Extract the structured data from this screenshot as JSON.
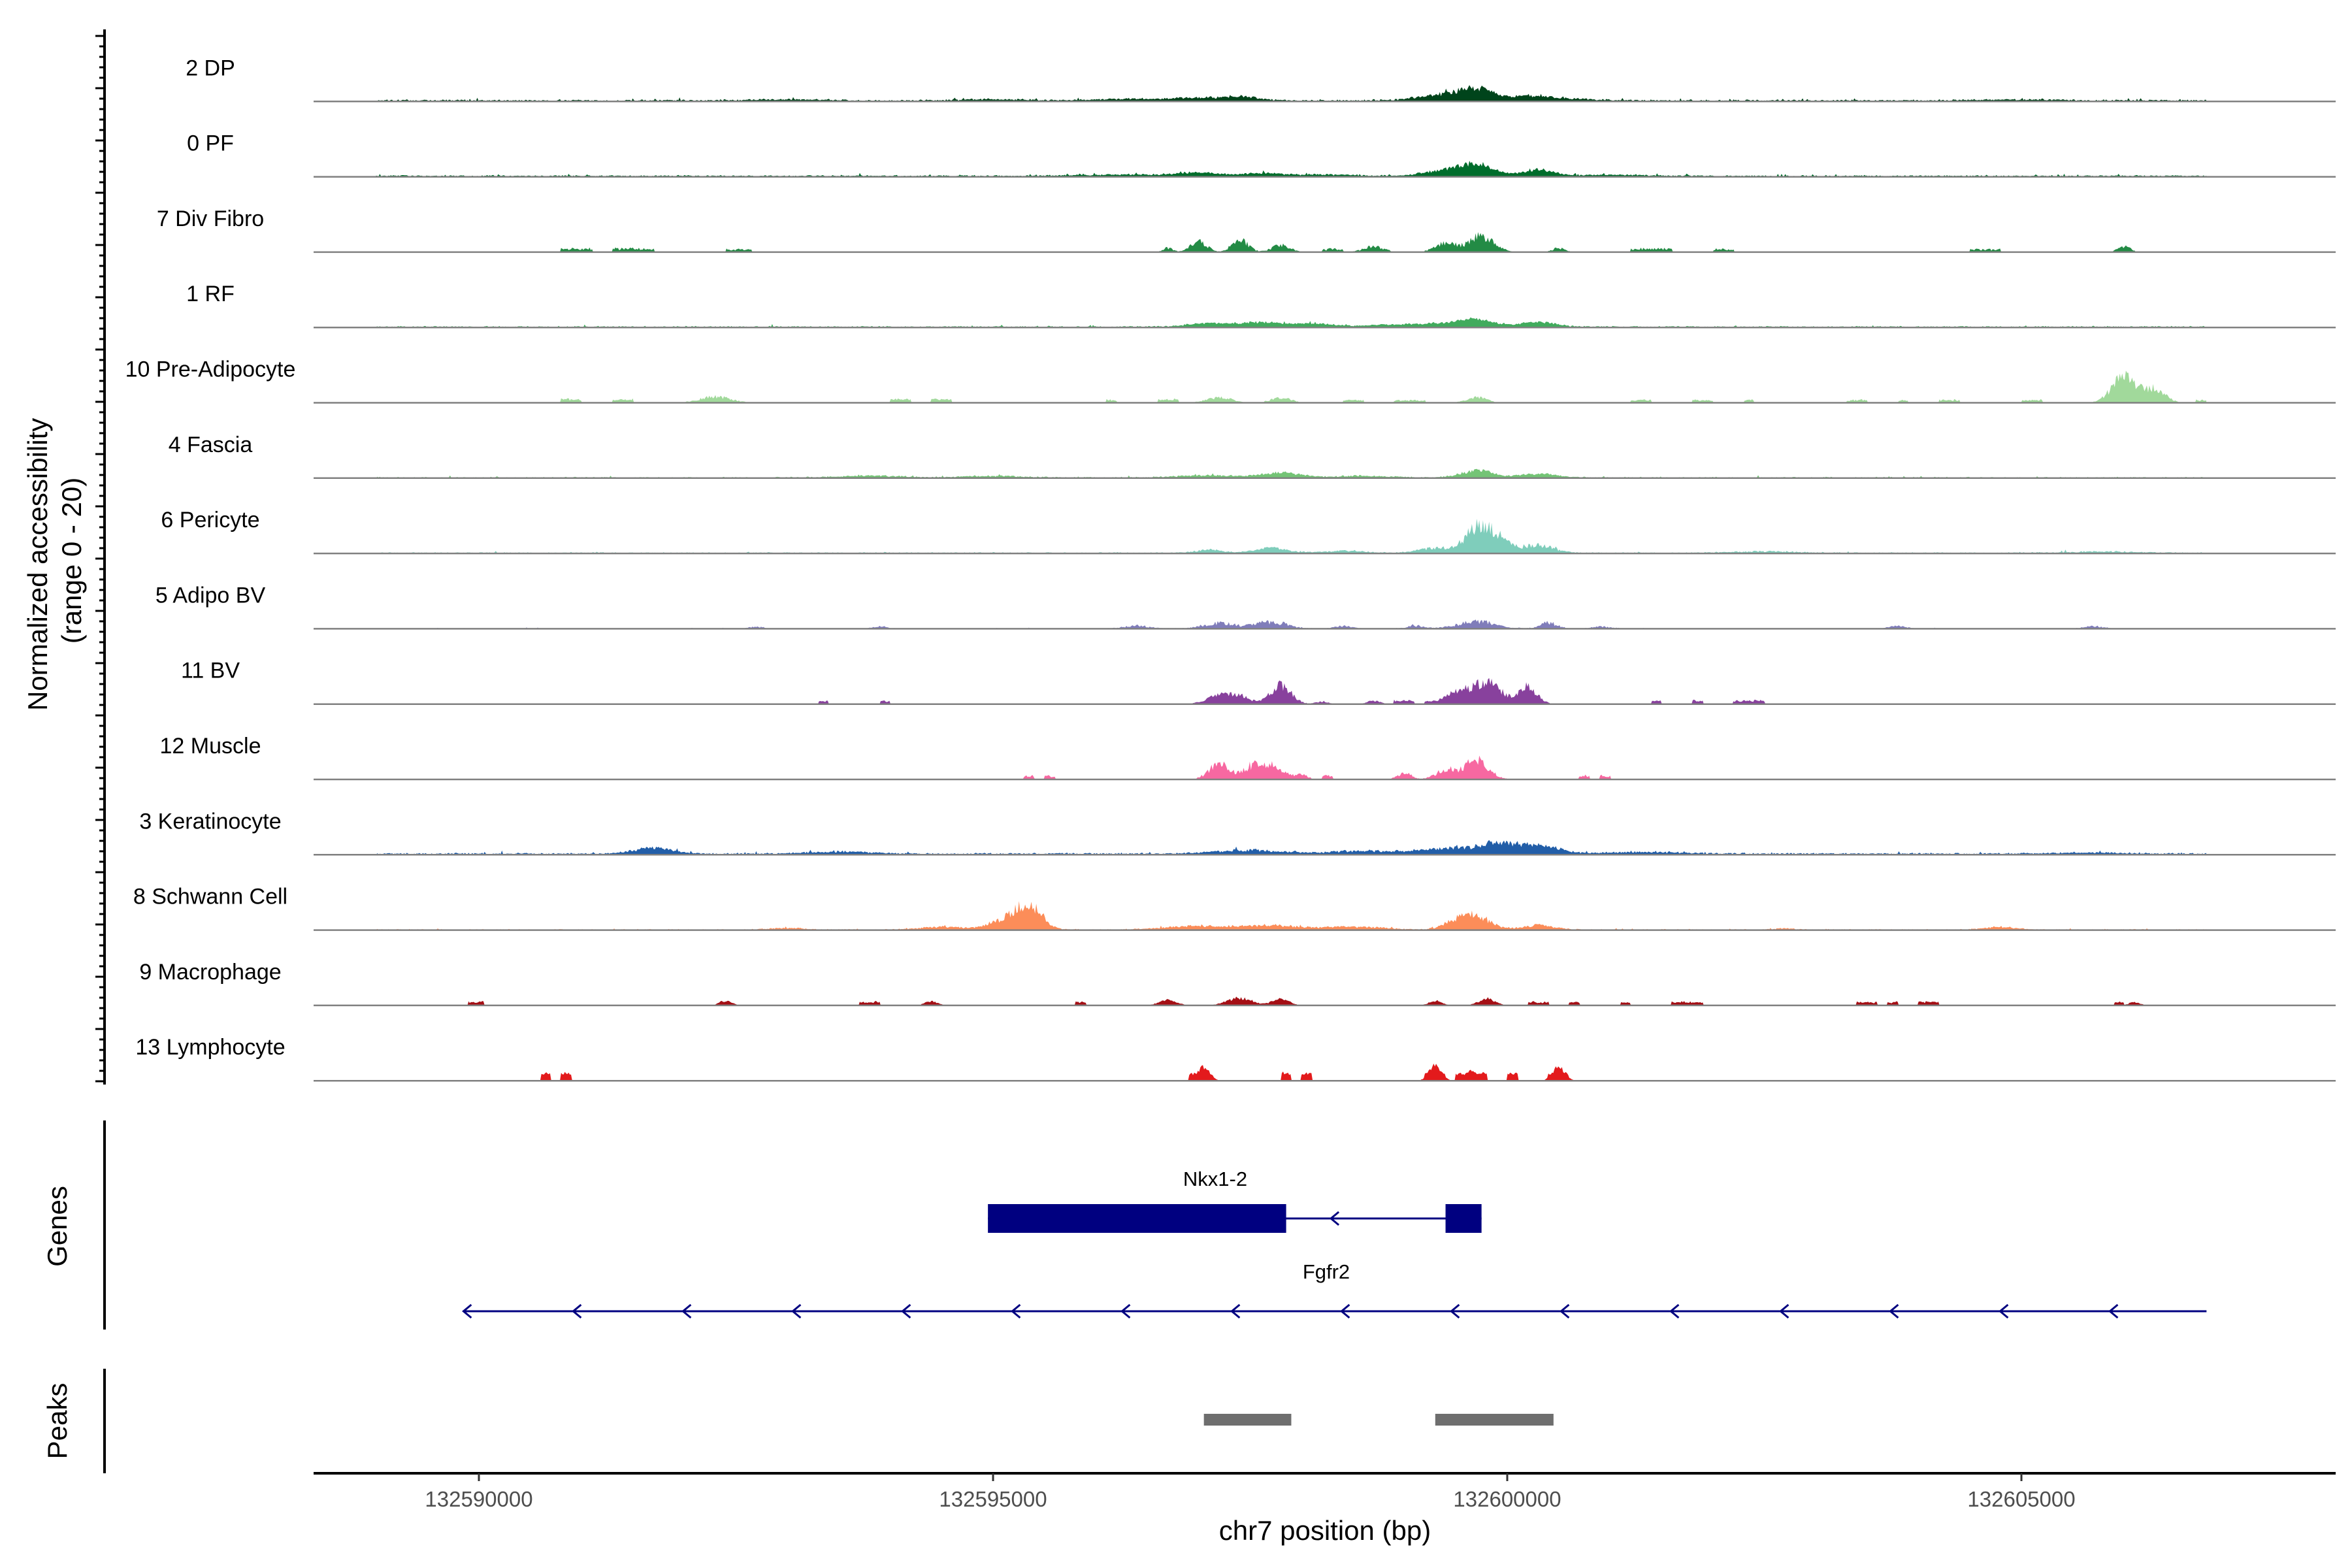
{
  "chart_data": {
    "type": "area",
    "title": "",
    "chromosome": "chr7",
    "xlabel": "chr7 position (bp)",
    "ylabel": "Normalized accessibility\n(range 0 - 20)",
    "ylim": [
      0,
      20
    ],
    "xlim": [
      132588750,
      132607250
    ],
    "x_ticks": [
      132590000,
      132595000,
      132600000,
      132605000
    ],
    "x_tick_labels": [
      "132590000",
      "132595000",
      "132600000",
      "132605000"
    ],
    "data_range": [
      132589000,
      132606800
    ],
    "panel_labels": {
      "genes": "Genes",
      "peaks": "Peaks"
    },
    "series": [
      {
        "name": "2 DP",
        "color": "#00441B",
        "style": "smooth",
        "base": 0.4,
        "noise": 0.5,
        "peaks": [
          [
            132597400,
            180,
            1.0
          ],
          [
            132597000,
            250,
            0.6
          ],
          [
            132599700,
            160,
            2.8
          ],
          [
            132599400,
            250,
            1.6
          ],
          [
            132600200,
            200,
            1.2
          ],
          [
            132600600,
            250,
            0.5
          ],
          [
            132596300,
            400,
            0.4
          ],
          [
            132593000,
            300,
            0.3
          ],
          [
            132595000,
            300,
            0.3
          ],
          [
            132604900,
            400,
            0.25
          ]
        ]
      },
      {
        "name": "0 PF",
        "color": "#006D2C",
        "style": "smooth",
        "base": 0.35,
        "noise": 0.5,
        "peaks": [
          [
            132597000,
            180,
            1.0
          ],
          [
            132597600,
            180,
            0.8
          ],
          [
            132599700,
            160,
            3.2
          ],
          [
            132599400,
            200,
            1.5
          ],
          [
            132600300,
            150,
            1.8
          ],
          [
            132598200,
            300,
            0.4
          ],
          [
            132596300,
            400,
            0.4
          ],
          [
            132601000,
            300,
            0.3
          ]
        ]
      },
      {
        "name": "7 Div Fibro",
        "color": "#238B45",
        "style": "sparse",
        "base": 0,
        "noise": 0.7,
        "peaks": [
          [
            132597000,
            80,
            3.0
          ],
          [
            132597400,
            80,
            3.5
          ],
          [
            132597800,
            90,
            2.0
          ],
          [
            132596700,
            50,
            1.2
          ],
          [
            132599750,
            120,
            4.6
          ],
          [
            132599400,
            100,
            2.8
          ],
          [
            132598700,
            100,
            1.6
          ],
          [
            132598300,
            60,
            1.0
          ],
          [
            132600500,
            60,
            1.2
          ],
          [
            132606000,
            60,
            1.6
          ]
        ],
        "blocks": [
          [
            132590800,
            132591100,
            0.8
          ],
          [
            132591300,
            132591700,
            0.8
          ],
          [
            132592400,
            132592650,
            0.6
          ],
          [
            132598200,
            132598400,
            0.6
          ],
          [
            132601200,
            132601600,
            0.8
          ],
          [
            132602000,
            132602200,
            0.6
          ],
          [
            132604500,
            132604800,
            0.6
          ]
        ]
      },
      {
        "name": "1 RF",
        "color": "#41AB5D",
        "style": "smooth",
        "base": 0.3,
        "noise": 0.4,
        "peaks": [
          [
            132597100,
            200,
            1.0
          ],
          [
            132597600,
            200,
            1.2
          ],
          [
            132598100,
            200,
            0.9
          ],
          [
            132599700,
            150,
            2.2
          ],
          [
            132600300,
            160,
            1.4
          ],
          [
            132599300,
            200,
            1.0
          ],
          [
            132598800,
            200,
            0.6
          ]
        ]
      },
      {
        "name": "10 Pre-Adipocyte",
        "color": "#A1D99B",
        "style": "sparse",
        "base": 0,
        "noise": 0.6,
        "peaks": [
          [
            132606000,
            120,
            7.5
          ],
          [
            132606300,
            100,
            4.0
          ],
          [
            132592300,
            150,
            1.8
          ],
          [
            132597200,
            120,
            1.6
          ],
          [
            132597800,
            100,
            1.4
          ],
          [
            132599700,
            100,
            1.6
          ]
        ],
        "blocks": [
          [
            132590800,
            132591000,
            0.8
          ],
          [
            132591300,
            132591500,
            0.8
          ],
          [
            132594000,
            132594200,
            0.8
          ],
          [
            132594400,
            132594600,
            0.8
          ],
          [
            132596100,
            132596200,
            0.6
          ],
          [
            132596600,
            132596800,
            0.8
          ],
          [
            132598400,
            132598600,
            0.6
          ],
          [
            132598900,
            132599200,
            0.6
          ],
          [
            132601200,
            132601400,
            0.6
          ],
          [
            132601800,
            132602000,
            0.6
          ],
          [
            132602300,
            132602400,
            0.6
          ],
          [
            132603300,
            132603500,
            0.6
          ],
          [
            132603800,
            132603900,
            0.6
          ],
          [
            132604200,
            132604400,
            0.6
          ],
          [
            132605000,
            132605200,
            0.6
          ],
          [
            132606700,
            132606800,
            0.6
          ]
        ]
      },
      {
        "name": "4 Fascia",
        "color": "#74C476",
        "style": "smooth",
        "base": 0.25,
        "noise": 0.5,
        "peaks": [
          [
            132597800,
            180,
            1.4
          ],
          [
            132597100,
            300,
            0.6
          ],
          [
            132599700,
            150,
            2.0
          ],
          [
            132600300,
            180,
            1.1
          ],
          [
            132593800,
            300,
            0.5
          ],
          [
            132595000,
            300,
            0.4
          ],
          [
            132598600,
            250,
            0.5
          ]
        ]
      },
      {
        "name": "6 Pericyte",
        "color": "#7FCDBB",
        "style": "smooth",
        "base": 0.25,
        "noise": 0.6,
        "peaks": [
          [
            132599700,
            110,
            7.0
          ],
          [
            132599900,
            110,
            4.5
          ],
          [
            132600300,
            150,
            2.2
          ],
          [
            132599300,
            150,
            1.5
          ],
          [
            132597700,
            150,
            1.4
          ],
          [
            132597100,
            120,
            0.9
          ],
          [
            132598400,
            200,
            0.6
          ],
          [
            132602500,
            300,
            0.4
          ],
          [
            132605800,
            300,
            0.35
          ]
        ]
      },
      {
        "name": "5 Adipo BV",
        "color": "#807DBA",
        "style": "smooth",
        "base": 0.1,
        "noise": 0.8,
        "peaks": [
          [
            132597700,
            150,
            2.0
          ],
          [
            132597200,
            150,
            1.6
          ],
          [
            132596400,
            120,
            0.8
          ],
          [
            132599700,
            180,
            2.0
          ],
          [
            132600400,
            80,
            1.8
          ],
          [
            132599100,
            80,
            0.8
          ],
          [
            132598400,
            80,
            0.8
          ],
          [
            132600900,
            80,
            0.6
          ],
          [
            132603800,
            80,
            0.7
          ],
          [
            132605700,
            80,
            0.7
          ],
          [
            132593900,
            60,
            0.7
          ],
          [
            132592700,
            60,
            0.5
          ]
        ]
      },
      {
        "name": "11 BV",
        "color": "#88419D",
        "style": "sparse",
        "base": 0,
        "noise": 0.6,
        "peaks": [
          [
            132597800,
            100,
            5.5
          ],
          [
            132597200,
            120,
            2.5
          ],
          [
            132597400,
            100,
            2.0
          ],
          [
            132599800,
            140,
            6.5
          ],
          [
            132600200,
            90,
            5.0
          ],
          [
            132599500,
            120,
            3.0
          ],
          [
            132598700,
            60,
            1.0
          ],
          [
            132598200,
            60,
            0.8
          ]
        ],
        "blocks": [
          [
            132593300,
            132593400,
            0.8
          ],
          [
            132593900,
            132594000,
            0.8
          ],
          [
            132598900,
            132599100,
            0.8
          ],
          [
            132599200,
            132599400,
            0.8
          ],
          [
            132601400,
            132601500,
            0.8
          ],
          [
            132601800,
            132601900,
            0.8
          ],
          [
            132602200,
            132602400,
            0.8
          ],
          [
            132602400,
            132602500,
            0.8
          ]
        ]
      },
      {
        "name": "12 Muscle",
        "color": "#F768A1",
        "style": "sparse",
        "base": 0,
        "noise": 0.7,
        "peaks": [
          [
            132597200,
            100,
            4.5
          ],
          [
            132597700,
            120,
            4.0
          ],
          [
            132597500,
            80,
            3.0
          ],
          [
            132599700,
            120,
            5.5
          ],
          [
            132599400,
            100,
            2.6
          ],
          [
            132599000,
            70,
            1.8
          ],
          [
            132598000,
            60,
            1.4
          ]
        ],
        "blocks": [
          [
            132595300,
            132595400,
            0.8
          ],
          [
            132595500,
            132595600,
            0.8
          ],
          [
            132598200,
            132598300,
            0.8
          ],
          [
            132600700,
            132600800,
            0.8
          ],
          [
            132600900,
            132601000,
            0.8
          ]
        ]
      },
      {
        "name": "3 Keratinocyte",
        "color": "#225EA8",
        "style": "smooth",
        "base": 0.4,
        "noise": 0.5,
        "peaks": [
          [
            132591700,
            180,
            1.8
          ],
          [
            132599900,
            180,
            2.8
          ],
          [
            132600300,
            180,
            2.4
          ],
          [
            132599400,
            250,
            1.5
          ],
          [
            132597500,
            350,
            1.0
          ],
          [
            132598600,
            300,
            0.8
          ],
          [
            132593500,
            300,
            0.6
          ],
          [
            132601300,
            400,
            0.5
          ],
          [
            132605600,
            300,
            0.4
          ]
        ]
      },
      {
        "name": "8 Schwann Cell",
        "color": "#FC8D59",
        "style": "smooth",
        "base": 0.2,
        "noise": 0.6,
        "peaks": [
          [
            132595350,
            120,
            7.2
          ],
          [
            132595100,
            150,
            2.5
          ],
          [
            132594500,
            200,
            0.8
          ],
          [
            132597000,
            300,
            1.1
          ],
          [
            132597700,
            250,
            1.2
          ],
          [
            132598500,
            300,
            0.8
          ],
          [
            132599700,
            140,
            3.6
          ],
          [
            132599500,
            120,
            2.0
          ],
          [
            132600300,
            150,
            1.2
          ],
          [
            132593000,
            150,
            0.5
          ],
          [
            132604800,
            150,
            0.8
          ],
          [
            132602700,
            80,
            0.4
          ]
        ]
      },
      {
        "name": "9 Macrophage",
        "color": "#A50F15",
        "style": "sparse",
        "base": 0,
        "noise": 0.5,
        "peaks": [
          [
            132597400,
            120,
            2.2
          ],
          [
            132597800,
            80,
            2.0
          ],
          [
            132596700,
            80,
            1.8
          ],
          [
            132592400,
            60,
            1.4
          ],
          [
            132594400,
            60,
            1.2
          ],
          [
            132599800,
            80,
            2.0
          ],
          [
            132599300,
            60,
            1.4
          ],
          [
            132606100,
            60,
            0.9
          ]
        ],
        "blocks": [
          [
            132589900,
            132590050,
            0.8
          ],
          [
            132593700,
            132593900,
            0.8
          ],
          [
            132595800,
            132595900,
            0.8
          ],
          [
            132600200,
            132600400,
            0.8
          ],
          [
            132600600,
            132600700,
            0.8
          ],
          [
            132601100,
            132601200,
            0.8
          ],
          [
            132601600,
            132601900,
            0.8
          ],
          [
            132603400,
            132603600,
            0.8
          ],
          [
            132603700,
            132603800,
            0.8
          ],
          [
            132604000,
            132604200,
            0.8
          ],
          [
            132605900,
            132606000,
            0.8
          ]
        ]
      },
      {
        "name": "13 Lymphocyte",
        "color": "#E31A1C",
        "style": "sparse",
        "base": 0,
        "noise": 0.4,
        "peaks": [
          [
            132597050,
            60,
            4.0
          ],
          [
            132599300,
            60,
            4.5
          ],
          [
            132599650,
            60,
            3.0
          ],
          [
            132600500,
            60,
            4.0
          ]
        ],
        "blocks": [
          [
            132590600,
            132590700,
            2.0
          ],
          [
            132590800,
            132590900,
            2.0
          ],
          [
            132596900,
            132597100,
            2.0
          ],
          [
            132597800,
            132597900,
            2.0
          ],
          [
            132598000,
            132598100,
            2.0
          ],
          [
            132599200,
            132599400,
            2.0
          ],
          [
            132599500,
            132599700,
            2.0
          ],
          [
            132599700,
            132599800,
            2.0
          ],
          [
            132600000,
            132600100,
            2.0
          ],
          [
            132600400,
            132600600,
            2.0
          ]
        ]
      }
    ],
    "genes": [
      {
        "name": "Nkx1-2",
        "strand": "-",
        "start": 132594950,
        "end": 132599750,
        "exons": [
          [
            132594950,
            132597850,
            "thick"
          ],
          [
            132599400,
            132599750,
            "thick"
          ]
        ]
      },
      {
        "name": "Fgfr2",
        "strand": "-",
        "start": 132589850,
        "end": 132606800,
        "exons": []
      }
    ],
    "peaks": [
      [
        132597050,
        132597900
      ],
      [
        132599300,
        132600450
      ]
    ],
    "track_color": "#808080",
    "gene_color": "#000080",
    "peak_color": "#6E6E6E"
  }
}
